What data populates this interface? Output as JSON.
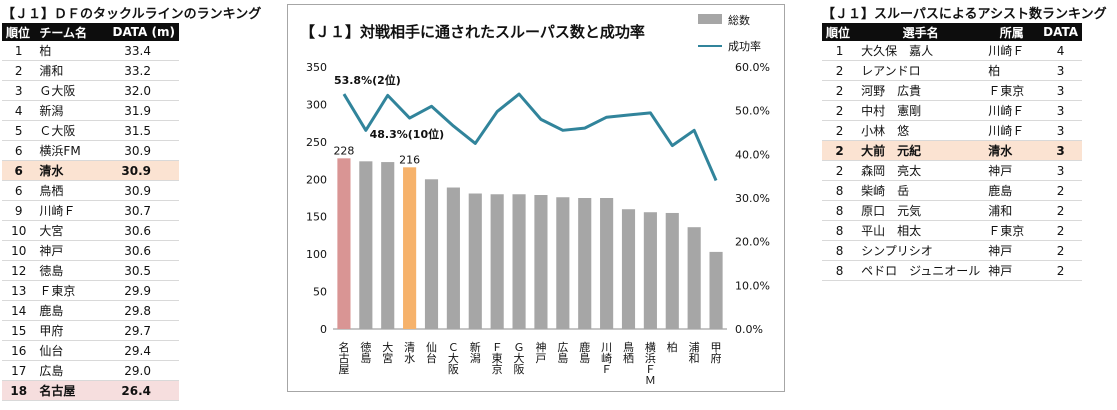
{
  "left_panel": {
    "title": "【Ｊ１】ＤＦのタックルラインのランキング",
    "headers": [
      "順位",
      "チーム名",
      "DATA (m)"
    ],
    "rows": [
      {
        "rank": "1",
        "name": "柏",
        "value": "33.4"
      },
      {
        "rank": "2",
        "name": "浦和",
        "value": "33.2"
      },
      {
        "rank": "3",
        "name": "Ｇ大阪",
        "value": "32.0"
      },
      {
        "rank": "4",
        "name": "新潟",
        "value": "31.9"
      },
      {
        "rank": "5",
        "name": "Ｃ大阪",
        "value": "31.5"
      },
      {
        "rank": "6",
        "name": "横浜FM",
        "value": "30.9"
      },
      {
        "rank": "6",
        "name": "清水",
        "value": "30.9",
        "highlight": "shimizu"
      },
      {
        "rank": "6",
        "name": "鳥栖",
        "value": "30.9"
      },
      {
        "rank": "9",
        "name": "川崎Ｆ",
        "value": "30.7"
      },
      {
        "rank": "10",
        "name": "大宮",
        "value": "30.6"
      },
      {
        "rank": "10",
        "name": "神戸",
        "value": "30.6"
      },
      {
        "rank": "12",
        "name": "徳島",
        "value": "30.5"
      },
      {
        "rank": "13",
        "name": "Ｆ東京",
        "value": "29.9"
      },
      {
        "rank": "14",
        "name": "鹿島",
        "value": "29.8"
      },
      {
        "rank": "15",
        "name": "甲府",
        "value": "29.7"
      },
      {
        "rank": "16",
        "name": "仙台",
        "value": "29.4"
      },
      {
        "rank": "17",
        "name": "広島",
        "value": "29.0"
      },
      {
        "rank": "18",
        "name": "名古屋",
        "value": "26.4",
        "highlight": "nagoya"
      }
    ]
  },
  "right_panel": {
    "title": "【Ｊ１】スルーパスによるアシスト数ランキング",
    "headers": [
      "順位",
      "選手名",
      "所属",
      "DATA"
    ],
    "rows": [
      {
        "rank": "1",
        "name": "大久保　嘉人",
        "team": "川崎Ｆ",
        "value": "4"
      },
      {
        "rank": "2",
        "name": "レアンドロ",
        "team": "柏",
        "value": "3"
      },
      {
        "rank": "2",
        "name": "河野　広貴",
        "team": "Ｆ東京",
        "value": "3"
      },
      {
        "rank": "2",
        "name": "中村　憲剛",
        "team": "川崎Ｆ",
        "value": "3"
      },
      {
        "rank": "2",
        "name": "小林　悠",
        "team": "川崎Ｆ",
        "value": "3"
      },
      {
        "rank": "2",
        "name": "大前　元紀",
        "team": "清水",
        "value": "3",
        "highlight": "shimizu"
      },
      {
        "rank": "2",
        "name": "森岡　亮太",
        "team": "神戸",
        "value": "3"
      },
      {
        "rank": "8",
        "name": "柴崎　岳",
        "team": "鹿島",
        "value": "2"
      },
      {
        "rank": "8",
        "name": "原口　元気",
        "team": "浦和",
        "value": "2"
      },
      {
        "rank": "8",
        "name": "平山　相太",
        "team": "Ｆ東京",
        "value": "2"
      },
      {
        "rank": "8",
        "name": "シンプリシオ",
        "team": "神戸",
        "value": "2"
      },
      {
        "rank": "8",
        "name": "ペドロ　ジュニオール",
        "team": "神戸",
        "value": "2"
      }
    ]
  },
  "chart_data": {
    "type": "bar",
    "title": "【Ｊ１】対戦相手に通されたスルーパス数と成功率",
    "categories": [
      "名古屋",
      "徳島",
      "大宮",
      "清水",
      "仙台",
      "Ｃ大阪",
      "新潟",
      "Ｆ東京",
      "Ｇ大阪",
      "神戸",
      "広島",
      "鹿島",
      "川崎Ｆ",
      "鳥栖",
      "横浜ＦＭ",
      "柏",
      "浦和",
      "甲府"
    ],
    "series": [
      {
        "name": "総数",
        "type": "bar",
        "axis": "left",
        "values": [
          228,
          224,
          223,
          216,
          200,
          189,
          181,
          180,
          180,
          179,
          176,
          175,
          175,
          160,
          156,
          155,
          136,
          103
        ]
      },
      {
        "name": "成功率",
        "type": "line",
        "axis": "right",
        "values": [
          53.8,
          45.5,
          53.5,
          48.3,
          51.0,
          46.5,
          42.5,
          49.8,
          53.8,
          48.0,
          45.5,
          46.0,
          48.5,
          49.0,
          49.5,
          42.0,
          45.5,
          34.0
        ]
      }
    ],
    "bar_colors": {
      "default": "#a6a6a6",
      "highlights": {
        "名古屋": "#d99594",
        "清水": "#f6b26b"
      }
    },
    "line_color": "#31849b",
    "bar_labels": [
      {
        "category": "名古屋",
        "text": "228"
      },
      {
        "category": "清水",
        "text": "216"
      }
    ],
    "annotations": [
      {
        "category": "名古屋",
        "text": "53.8%(2位)"
      },
      {
        "category": "清水",
        "text": "48.3%(10位)"
      }
    ],
    "ylim": [
      0,
      350
    ],
    "yticks": [
      "0",
      "50",
      "100",
      "150",
      "200",
      "250",
      "300",
      "350"
    ],
    "y2lim": [
      0,
      60
    ],
    "y2ticks": [
      "0.0%",
      "10.0%",
      "20.0%",
      "30.0%",
      "40.0%",
      "50.0%",
      "60.0%"
    ],
    "legend_position": "top-right",
    "grid": false
  }
}
